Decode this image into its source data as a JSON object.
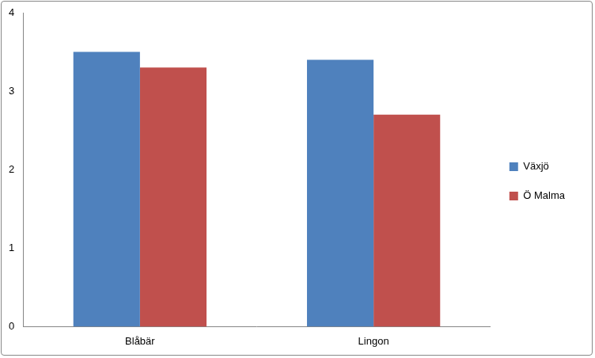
{
  "chart_data": {
    "type": "bar",
    "categories": [
      "Blåbär",
      "Lingon"
    ],
    "series": [
      {
        "name": "Växjö",
        "color": "#4f81bd",
        "values": [
          3.5,
          3.4
        ]
      },
      {
        "name": "Ö Malma",
        "color": "#c0504d",
        "values": [
          3.3,
          2.7
        ]
      }
    ],
    "ylim": [
      0,
      4
    ],
    "yticks": [
      0,
      1,
      2,
      3,
      4
    ],
    "grid": false,
    "legend": "right"
  }
}
